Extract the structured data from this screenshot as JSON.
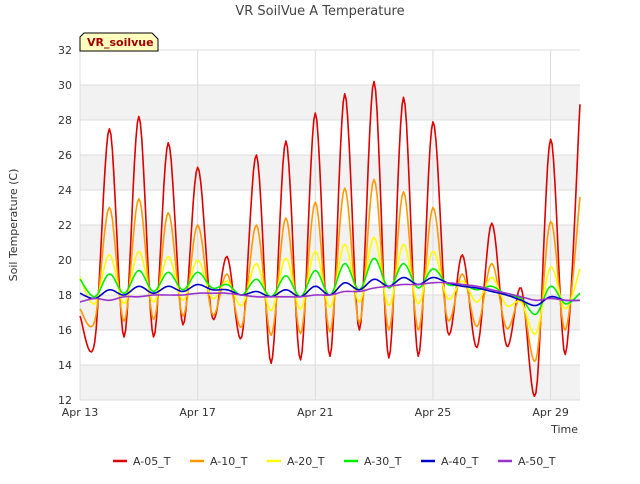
{
  "chart_data": {
    "type": "line",
    "title": "VR SoilVue A Temperature",
    "xlabel": "Time",
    "ylabel": "Soil Temperature (C)",
    "station_label": "VR_soilvue",
    "x_ticks": [
      "Apr 13",
      "Apr 17",
      "Apr 21",
      "Apr 25",
      "Apr 29"
    ],
    "y_ticks": [
      "12",
      "14",
      "16",
      "18",
      "20",
      "22",
      "24",
      "26",
      "28",
      "30",
      "32"
    ],
    "ylim": [
      12,
      32
    ],
    "xlim": [
      "2024-04-13",
      "2024-04-30"
    ],
    "grid": true,
    "legend_position": "bottom",
    "x": [
      "Apr 13 00:00",
      "Apr 13 12:00",
      "Apr 14 00:00",
      "Apr 14 12:00",
      "Apr 15 00:00",
      "Apr 15 12:00",
      "Apr 16 00:00",
      "Apr 16 12:00",
      "Apr 17 00:00",
      "Apr 17 12:00",
      "Apr 18 00:00",
      "Apr 18 12:00",
      "Apr 19 00:00",
      "Apr 19 12:00",
      "Apr 20 00:00",
      "Apr 20 12:00",
      "Apr 21 00:00",
      "Apr 21 12:00",
      "Apr 22 00:00",
      "Apr 22 12:00",
      "Apr 23 00:00",
      "Apr 23 12:00",
      "Apr 24 00:00",
      "Apr 24 12:00",
      "Apr 25 00:00",
      "Apr 25 12:00",
      "Apr 26 00:00",
      "Apr 26 12:00",
      "Apr 27 00:00",
      "Apr 27 12:00",
      "Apr 28 00:00",
      "Apr 28 12:00",
      "Apr 29 00:00",
      "Apr 29 12:00",
      "Apr 30 00:00"
    ],
    "series": [
      {
        "name": "A-05_T",
        "color": "#dd0000",
        "values": [
          16.8,
          15.3,
          27.5,
          15.6,
          28.2,
          15.6,
          26.7,
          16.3,
          25.3,
          16.7,
          20.2,
          15.6,
          26.0,
          14.1,
          26.8,
          14.3,
          28.4,
          14.5,
          29.5,
          16.0,
          30.2,
          14.4,
          29.3,
          14.5,
          27.9,
          15.9,
          20.3,
          15.0,
          22.1,
          15.1,
          18.4,
          12.4,
          26.9,
          14.6,
          28.9
        ]
      },
      {
        "name": "A-10_T",
        "color": "#ff9900",
        "values": [
          17.2,
          16.5,
          23.0,
          16.5,
          23.5,
          16.6,
          22.7,
          16.8,
          22.0,
          16.9,
          19.2,
          16.2,
          22.0,
          15.7,
          22.4,
          15.8,
          23.3,
          15.9,
          24.1,
          16.4,
          24.6,
          16.0,
          23.9,
          16.0,
          23.0,
          16.6,
          19.2,
          16.2,
          19.8,
          16.1,
          17.8,
          14.3,
          22.2,
          16.0,
          23.6
        ]
      },
      {
        "name": "A-20_T",
        "color": "#ffff00",
        "values": [
          19.0,
          17.5,
          20.3,
          17.5,
          20.5,
          17.6,
          20.2,
          17.7,
          20.0,
          17.8,
          18.8,
          17.4,
          19.8,
          17.1,
          20.1,
          17.2,
          20.5,
          17.3,
          20.9,
          17.6,
          21.3,
          17.4,
          20.9,
          17.5,
          20.5,
          17.8,
          18.8,
          17.6,
          19.0,
          17.4,
          17.6,
          15.8,
          19.6,
          17.2,
          19.5
        ]
      },
      {
        "name": "A-30_T",
        "color": "#00ee00",
        "values": [
          18.9,
          17.9,
          19.2,
          18.1,
          19.4,
          18.2,
          19.3,
          18.3,
          19.3,
          18.4,
          18.6,
          18.0,
          18.9,
          17.9,
          19.1,
          17.9,
          19.4,
          18.0,
          19.8,
          18.3,
          20.1,
          18.4,
          19.8,
          18.4,
          19.5,
          18.6,
          18.6,
          18.3,
          18.5,
          18.0,
          17.8,
          16.9,
          18.5,
          17.5,
          18.1
        ]
      },
      {
        "name": "A-40_T",
        "color": "#0000cc",
        "values": [
          18.1,
          17.8,
          18.3,
          18.0,
          18.5,
          18.1,
          18.5,
          18.2,
          18.6,
          18.3,
          18.3,
          18.0,
          18.2,
          17.9,
          18.3,
          17.9,
          18.5,
          18.0,
          18.7,
          18.3,
          18.9,
          18.5,
          19.0,
          18.6,
          19.0,
          18.7,
          18.5,
          18.4,
          18.2,
          18.0,
          17.7,
          17.4,
          17.9,
          17.7,
          17.7
        ]
      },
      {
        "name": "A-50_T",
        "color": "#9933cc",
        "values": [
          17.6,
          17.8,
          17.7,
          17.9,
          17.9,
          18.0,
          18.0,
          18.0,
          18.1,
          18.1,
          18.1,
          18.0,
          17.9,
          17.9,
          17.9,
          17.9,
          18.0,
          18.0,
          18.2,
          18.2,
          18.4,
          18.5,
          18.6,
          18.6,
          18.7,
          18.7,
          18.6,
          18.5,
          18.3,
          18.1,
          17.9,
          17.7,
          17.8,
          17.7,
          17.7
        ]
      }
    ]
  }
}
